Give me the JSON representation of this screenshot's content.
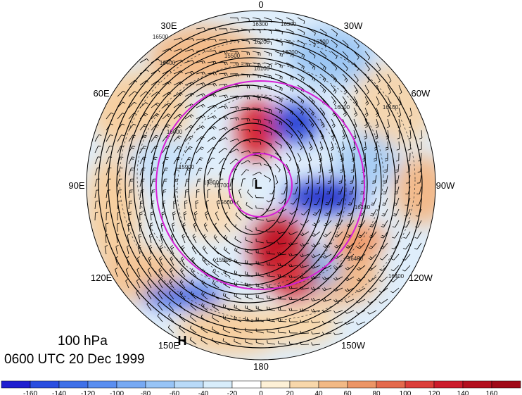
{
  "map": {
    "level_label": "100 hPa",
    "time_label": "0600 UTC 20 Dec 1999",
    "longitude_labels": [
      {
        "text": "0",
        "lon": 0
      },
      {
        "text": "30W",
        "lon": -30
      },
      {
        "text": "60W",
        "lon": -60
      },
      {
        "text": "90W",
        "lon": -90
      },
      {
        "text": "120W",
        "lon": -120
      },
      {
        "text": "150W",
        "lon": -150
      },
      {
        "text": "180",
        "lon": 180
      },
      {
        "text": "150E",
        "lon": 150
      },
      {
        "text": "120E",
        "lon": 120
      },
      {
        "text": "90E",
        "lon": 90
      },
      {
        "text": "60E",
        "lon": 60
      },
      {
        "text": "30E",
        "lon": 30
      }
    ],
    "low_marker": "L",
    "high_marker": "H",
    "contour_labels": [
      "16300",
      "16300",
      "16200",
      "16200",
      "16100",
      "16000",
      "15900",
      "15800",
      "15700",
      "15600",
      "15500",
      "16000",
      "16100",
      "16400",
      "16500",
      "16400",
      "16300",
      "15500",
      "16100",
      "16400"
    ],
    "colorbar": {
      "ticks": [
        "-160",
        "-140",
        "-120",
        "-100",
        "-80",
        "-60",
        "-40",
        "-20",
        "0",
        "20",
        "40",
        "60",
        "80",
        "100",
        "120",
        "140",
        "160"
      ],
      "colors": [
        "#1f1fd0",
        "#2a4ee0",
        "#3f70e8",
        "#5a8ef0",
        "#77a9f3",
        "#98c4f6",
        "#b9daf8",
        "#d8edfb",
        "#ffffff",
        "#fdf0d6",
        "#f8d7aa",
        "#f2b985",
        "#ec9566",
        "#e46a4d",
        "#dc3f3a",
        "#cc1c2c",
        "#b3101f"
      ]
    }
  }
}
